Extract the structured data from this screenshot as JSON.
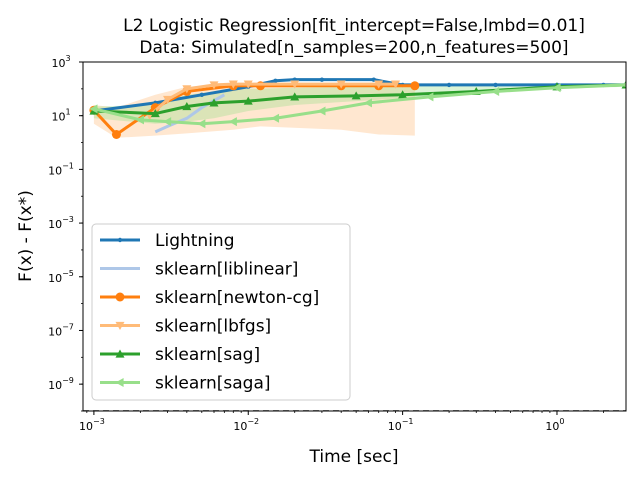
{
  "chart_data": {
    "type": "line",
    "title": "L2 Logistic Regression[fit_intercept=False,lmbd=0.01]",
    "subtitle": "Data: Simulated[n_samples=200,n_features=500]",
    "xlabel": "Time [sec]",
    "ylabel": "F(x) - F(x*)",
    "xscale": "log",
    "yscale": "log",
    "xlim": [
      0.00085,
      2.8
    ],
    "ylim": [
      1e-10,
      1000
    ],
    "x_ticks": [
      {
        "label": "10",
        "exp": "−3",
        "value": 0.001
      },
      {
        "label": "10",
        "exp": "−2",
        "value": 0.01
      },
      {
        "label": "10",
        "exp": "−1",
        "value": 0.1
      },
      {
        "label": "10",
        "exp": "0",
        "value": 1
      }
    ],
    "y_ticks": [
      {
        "label": "10",
        "exp": "3",
        "value": 1000
      },
      {
        "label": "10",
        "exp": "1",
        "value": 10
      },
      {
        "label": "10",
        "exp": "−1",
        "value": 0.1
      },
      {
        "label": "10",
        "exp": "−3",
        "value": 0.001
      },
      {
        "label": "10",
        "exp": "−5",
        "value": 1e-05
      },
      {
        "label": "10",
        "exp": "−7",
        "value": 1e-07
      },
      {
        "label": "10",
        "exp": "−9",
        "value": 1e-09
      }
    ],
    "reference_line": {
      "y": 1e-10,
      "style": "dashed",
      "color": "#000000"
    },
    "legend_position": "lower-left",
    "series": [
      {
        "name": "Lightning",
        "color": "#1f77b4",
        "marker": "point",
        "fill": false,
        "x": [
          0.001,
          0.0025,
          0.005,
          0.01,
          0.015,
          0.02,
          0.03,
          0.065,
          0.1,
          0.2,
          0.4,
          1.0,
          2.0,
          2.8
        ],
        "y": [
          15,
          30,
          60,
          120,
          200,
          220,
          220,
          220,
          140,
          140,
          140,
          140,
          140,
          140
        ]
      },
      {
        "name": "sklearn[liblinear]",
        "color": "#aec7e8",
        "marker": "none",
        "fill": false,
        "x": [
          0.0025,
          0.003,
          0.004,
          0.005,
          0.007
        ],
        "y": [
          2.5,
          4,
          8,
          20,
          60
        ]
      },
      {
        "name": "sklearn[newton-cg]",
        "color": "#ff7f0e",
        "marker": "circle",
        "fill": true,
        "fill_color": "#ffbb78",
        "fill_upper": [
          25,
          20,
          60,
          120,
          150,
          160,
          150,
          150,
          150
        ],
        "fill_lower": [
          5,
          1.5,
          1.8,
          2.2,
          3,
          4,
          3,
          2,
          1.8
        ],
        "x": [
          0.001,
          0.0014,
          0.0025,
          0.004,
          0.008,
          0.012,
          0.04,
          0.07,
          0.12
        ],
        "y": [
          16,
          2,
          20,
          80,
          130,
          130,
          130,
          130,
          130
        ]
      },
      {
        "name": "sklearn[lbfgs]",
        "color": "#ffbb78",
        "marker": "triangle-down",
        "fill": false,
        "x": [
          0.0023,
          0.003,
          0.004,
          0.006,
          0.008,
          0.01,
          0.02,
          0.04,
          0.07,
          0.09
        ],
        "y": [
          10,
          40,
          100,
          140,
          150,
          150,
          150,
          150,
          150,
          150
        ]
      },
      {
        "name": "sklearn[sag]",
        "color": "#2ca02c",
        "marker": "triangle-up",
        "fill": true,
        "fill_color": "#98df8a",
        "fill_upper": [
          22,
          25,
          60,
          80,
          100,
          110,
          120,
          130,
          140,
          145,
          150
        ],
        "fill_lower": [
          8,
          5,
          6,
          8,
          15,
          25,
          35,
          45,
          70,
          100,
          120
        ],
        "x": [
          0.001,
          0.0025,
          0.004,
          0.006,
          0.01,
          0.02,
          0.05,
          0.1,
          0.3,
          1.0,
          2.8
        ],
        "y": [
          15,
          12,
          22,
          30,
          35,
          50,
          55,
          60,
          80,
          120,
          140
        ]
      },
      {
        "name": "sklearn[saga]",
        "color": "#98df8a",
        "marker": "triangle-left",
        "fill": false,
        "x": [
          0.001,
          0.002,
          0.003,
          0.005,
          0.008,
          0.015,
          0.03,
          0.06,
          0.15,
          0.4,
          1.0,
          2.8
        ],
        "y": [
          18,
          7,
          6,
          5,
          6,
          8,
          15,
          30,
          50,
          80,
          110,
          140
        ]
      }
    ]
  }
}
